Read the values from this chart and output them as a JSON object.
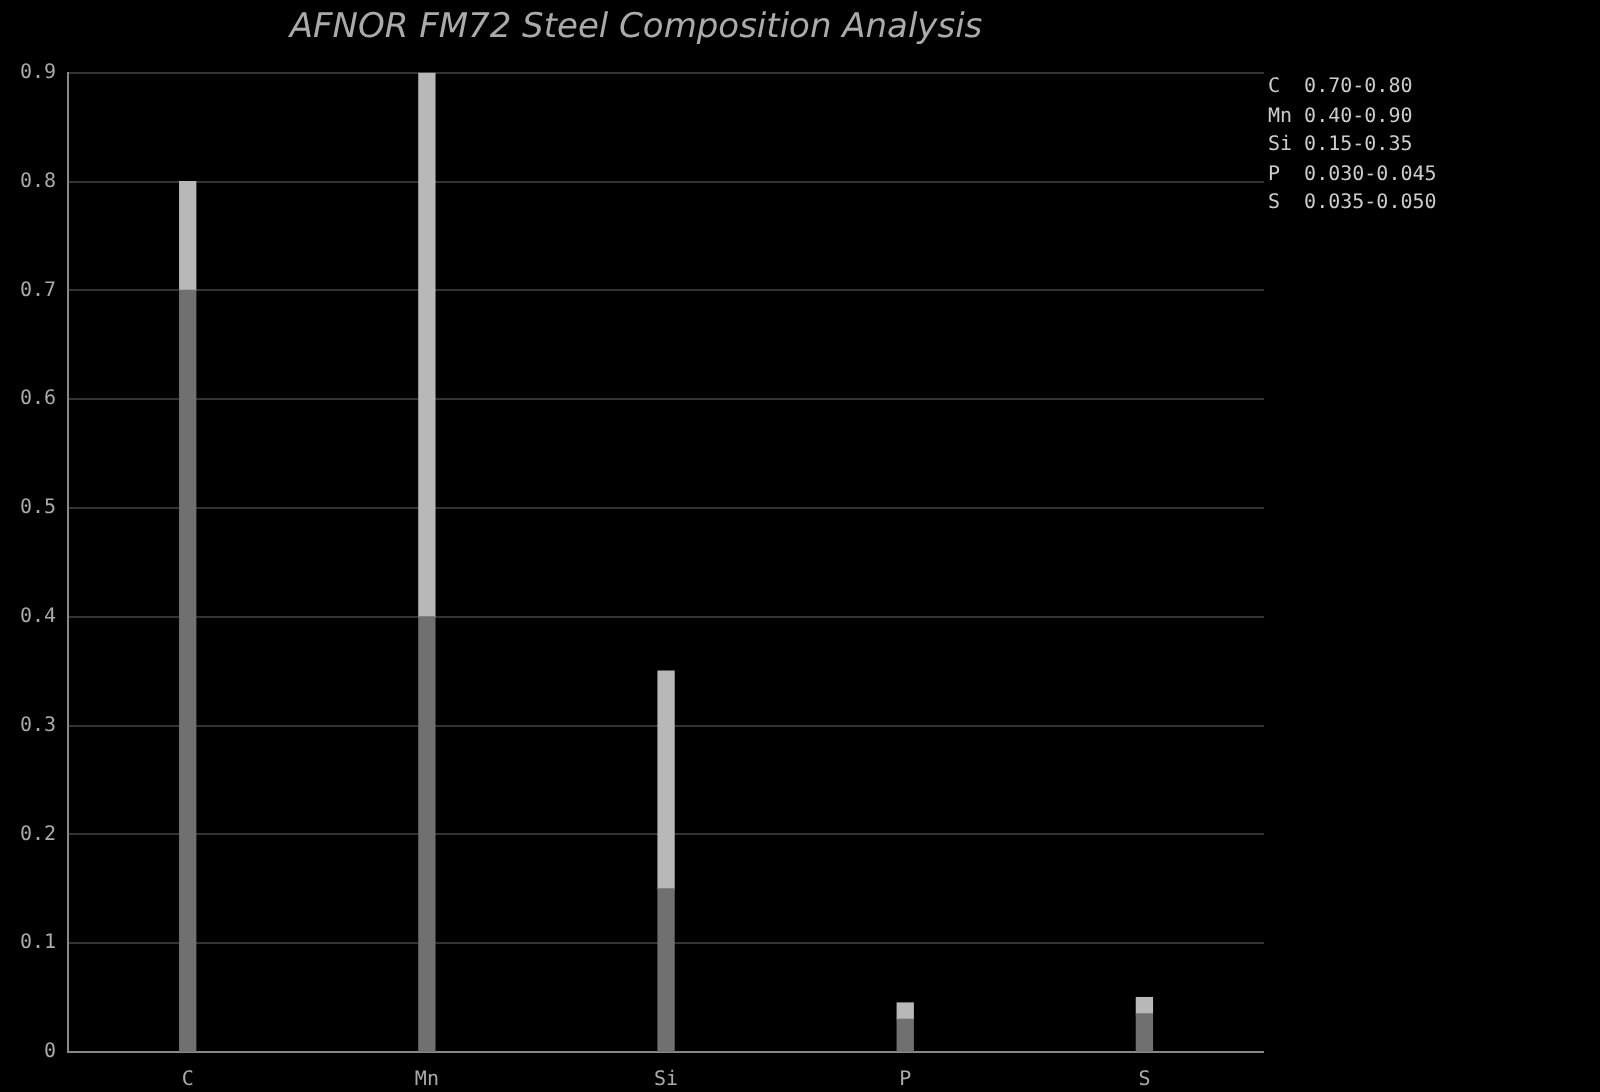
{
  "chart_data": {
    "type": "bar",
    "title": "AFNOR FM72 Steel Composition Analysis",
    "categories": [
      "C",
      "Mn",
      "Si",
      "P",
      "S"
    ],
    "stacked": true,
    "series": [
      {
        "color": "#707070",
        "values": [
          0.7,
          0.4,
          0.15,
          0.03,
          0.035
        ]
      },
      {
        "color": "#b8b8b8",
        "values": [
          0.1,
          0.5,
          0.2,
          0.015,
          0.015
        ]
      }
    ],
    "ylim": [
      0,
      0.9
    ],
    "yticks": [
      0,
      0.1,
      0.2,
      0.3,
      0.4,
      0.5,
      0.6,
      0.7,
      0.8,
      0.9
    ],
    "grid": "y",
    "legend": false,
    "annotations": [
      "C  0.70-0.80",
      "Mn 0.40-0.90",
      "Si 0.15-0.35",
      "P  0.030-0.045",
      "S  0.035-0.050"
    ]
  }
}
